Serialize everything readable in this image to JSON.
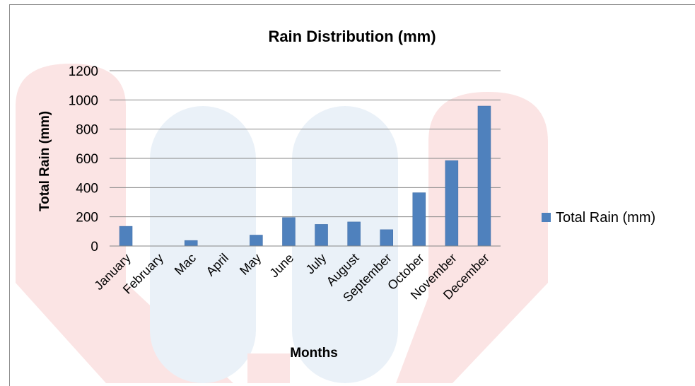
{
  "chart_data": {
    "type": "bar",
    "title": "Rain Distribution (mm)",
    "xlabel": "Months",
    "ylabel": "Total Rain (mm)",
    "categories": [
      "January",
      "February",
      "Mac",
      "April",
      "May",
      "June",
      "July",
      "August",
      "September",
      "October",
      "November",
      "December"
    ],
    "series": [
      {
        "name": "Total Rain (mm)",
        "values": [
          135,
          0,
          38,
          0,
          75,
          195,
          148,
          165,
          112,
          365,
          585,
          958
        ],
        "color": "#4f81bd"
      }
    ],
    "ylim": [
      0,
      1200
    ],
    "yticks": [
      "0",
      "200",
      "400",
      "600",
      "800",
      "1000",
      "1200"
    ],
    "grid": true,
    "legend_position": "right"
  },
  "background": {
    "watermark_colors": [
      "#fbe3e3",
      "#e7eff7"
    ]
  }
}
